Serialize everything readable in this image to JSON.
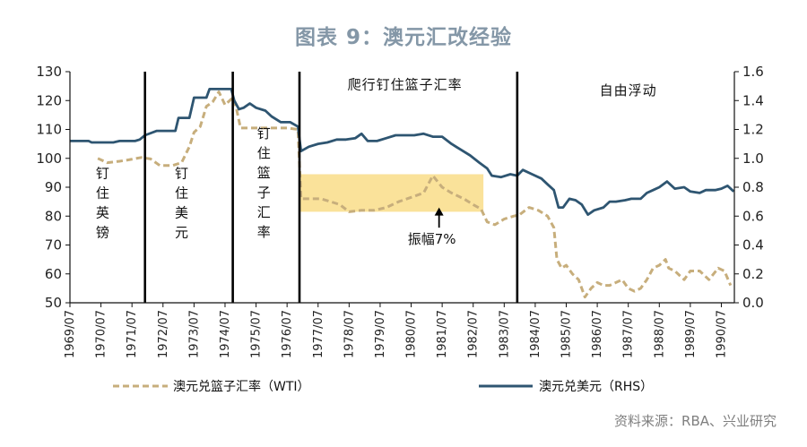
{
  "title": "图表 9：澳元汇改经验",
  "source": "资料来源：RBA、兴业研究",
  "chart_data": {
    "type": "line",
    "ylim_left": [
      50,
      130
    ],
    "yticks_left": [
      "50",
      "60",
      "70",
      "80",
      "90",
      "100",
      "110",
      "120",
      "130"
    ],
    "ylim_right": [
      0.0,
      1.6
    ],
    "yticks_right": [
      "0.0",
      "0.2",
      "0.4",
      "0.6",
      "0.8",
      "1.0",
      "1.2",
      "1.4",
      "1.6"
    ],
    "xlim": [
      1969.5,
      1990.92
    ],
    "xticks": [
      "1969/07",
      "1970/07",
      "1971/07",
      "1972/07",
      "1973/07",
      "1974/07",
      "1975/07",
      "1976/07",
      "1977/07",
      "1978/07",
      "1979/07",
      "1980/07",
      "1981/07",
      "1982/07",
      "1983/07",
      "1984/07",
      "1985/07",
      "1986/07",
      "1987/07",
      "1988/07",
      "1989/07",
      "1990/07"
    ],
    "regime_lines": [
      1971.92,
      1974.75,
      1976.9,
      1983.92
    ],
    "regime_labels": [
      {
        "text": "钉\n住\n英\n镑",
        "vertical": true,
        "x": 1970.55,
        "y": 83
      },
      {
        "text": "钉\n住\n美\n元",
        "vertical": true,
        "x": 1973.1,
        "y": 83
      },
      {
        "text": "钉\n住\n篮\n子\n汇\n率",
        "vertical": true,
        "x": 1975.75,
        "y": 90
      },
      {
        "text": "爬行钉住篮子汇率",
        "vertical": false,
        "x": 1980.3,
        "y": 124
      },
      {
        "text": "自由浮动",
        "vertical": false,
        "x": 1987.5,
        "y": 122
      }
    ],
    "band": {
      "x0": 1976.92,
      "x1": 1982.83,
      "y0": 81.5,
      "y1": 94.5,
      "color": "#f9dd88"
    },
    "annotation": {
      "text": "振幅7%",
      "x": 1981.4,
      "y_label": 70.5,
      "arrow_from": 76,
      "arrow_to": 83
    },
    "series": [
      {
        "name": "澳元兑篮子汇率（WTI）",
        "axis": "left",
        "color": "#c7ae7c",
        "dashed": true,
        "points": [
          [
            1970.4,
            100
          ],
          [
            1970.7,
            98.5
          ],
          [
            1971.1,
            99
          ],
          [
            1971.4,
            99.5
          ],
          [
            1971.8,
            100.3
          ],
          [
            1972.1,
            99.8
          ],
          [
            1972.4,
            97.5
          ],
          [
            1972.8,
            97.5
          ],
          [
            1973.1,
            98.5
          ],
          [
            1973.35,
            104
          ],
          [
            1973.5,
            109
          ],
          [
            1973.7,
            111
          ],
          [
            1973.9,
            118
          ],
          [
            1974.1,
            119.5
          ],
          [
            1974.3,
            123
          ],
          [
            1974.5,
            118.5
          ],
          [
            1974.75,
            121
          ],
          [
            1974.85,
            118
          ],
          [
            1975.0,
            110.5
          ],
          [
            1975.5,
            110.5
          ],
          [
            1976.0,
            110.5
          ],
          [
            1976.5,
            110.5
          ],
          [
            1976.85,
            110
          ],
          [
            1976.95,
            86
          ],
          [
            1977.2,
            86
          ],
          [
            1977.6,
            86
          ],
          [
            1977.9,
            85
          ],
          [
            1978.2,
            84
          ],
          [
            1978.5,
            81.5
          ],
          [
            1978.9,
            82
          ],
          [
            1979.3,
            82
          ],
          [
            1979.7,
            83
          ],
          [
            1980.1,
            85
          ],
          [
            1980.5,
            86.5
          ],
          [
            1980.9,
            88
          ],
          [
            1981.2,
            94
          ],
          [
            1981.5,
            90
          ],
          [
            1981.8,
            88
          ],
          [
            1982.2,
            86
          ],
          [
            1982.5,
            84
          ],
          [
            1982.75,
            82.5
          ],
          [
            1982.95,
            78
          ],
          [
            1983.2,
            77
          ],
          [
            1983.5,
            79
          ],
          [
            1983.8,
            80
          ],
          [
            1984.0,
            80.5
          ],
          [
            1984.3,
            83
          ],
          [
            1984.6,
            82
          ],
          [
            1984.9,
            80
          ],
          [
            1985.1,
            76
          ],
          [
            1985.2,
            65
          ],
          [
            1985.35,
            62
          ],
          [
            1985.5,
            63
          ],
          [
            1985.7,
            60
          ],
          [
            1985.9,
            58
          ],
          [
            1986.1,
            52
          ],
          [
            1986.3,
            55
          ],
          [
            1986.5,
            57
          ],
          [
            1986.7,
            56
          ],
          [
            1986.9,
            56
          ],
          [
            1987.1,
            57
          ],
          [
            1987.3,
            58
          ],
          [
            1987.5,
            55
          ],
          [
            1987.7,
            54
          ],
          [
            1987.9,
            55
          ],
          [
            1988.1,
            58
          ],
          [
            1988.3,
            62
          ],
          [
            1988.5,
            63
          ],
          [
            1988.7,
            65
          ],
          [
            1988.8,
            62
          ],
          [
            1989.0,
            61
          ],
          [
            1989.3,
            58
          ],
          [
            1989.5,
            61
          ],
          [
            1989.8,
            61
          ],
          [
            1990.1,
            58
          ],
          [
            1990.4,
            62
          ],
          [
            1990.6,
            61
          ],
          [
            1990.8,
            56
          ]
        ]
      },
      {
        "name": "澳元兑美元（RHS）",
        "axis": "right",
        "color": "#2e5571",
        "dashed": false,
        "points": [
          [
            1969.5,
            1.12
          ],
          [
            1969.9,
            1.12
          ],
          [
            1970.1,
            1.12
          ],
          [
            1970.2,
            1.11
          ],
          [
            1970.5,
            1.11
          ],
          [
            1970.9,
            1.11
          ],
          [
            1971.1,
            1.12
          ],
          [
            1971.4,
            1.12
          ],
          [
            1971.6,
            1.12
          ],
          [
            1971.75,
            1.13
          ],
          [
            1971.92,
            1.16
          ],
          [
            1972.3,
            1.19
          ],
          [
            1972.9,
            1.19
          ],
          [
            1973.0,
            1.28
          ],
          [
            1973.35,
            1.28
          ],
          [
            1973.5,
            1.42
          ],
          [
            1973.9,
            1.42
          ],
          [
            1974.0,
            1.48
          ],
          [
            1974.7,
            1.48
          ],
          [
            1974.8,
            1.4
          ],
          [
            1974.95,
            1.34
          ],
          [
            1975.1,
            1.35
          ],
          [
            1975.3,
            1.38
          ],
          [
            1975.5,
            1.35
          ],
          [
            1975.8,
            1.33
          ],
          [
            1976.0,
            1.29
          ],
          [
            1976.3,
            1.25
          ],
          [
            1976.6,
            1.25
          ],
          [
            1976.85,
            1.22
          ],
          [
            1976.95,
            1.05
          ],
          [
            1977.2,
            1.08
          ],
          [
            1977.5,
            1.1
          ],
          [
            1977.8,
            1.11
          ],
          [
            1978.1,
            1.13
          ],
          [
            1978.4,
            1.13
          ],
          [
            1978.7,
            1.14
          ],
          [
            1978.9,
            1.17
          ],
          [
            1979.1,
            1.12
          ],
          [
            1979.4,
            1.12
          ],
          [
            1979.7,
            1.14
          ],
          [
            1980.0,
            1.16
          ],
          [
            1980.3,
            1.16
          ],
          [
            1980.6,
            1.16
          ],
          [
            1980.9,
            1.17
          ],
          [
            1981.2,
            1.15
          ],
          [
            1981.5,
            1.15
          ],
          [
            1981.8,
            1.1
          ],
          [
            1982.1,
            1.06
          ],
          [
            1982.4,
            1.02
          ],
          [
            1982.7,
            0.97
          ],
          [
            1982.95,
            0.93
          ],
          [
            1983.1,
            0.88
          ],
          [
            1983.4,
            0.87
          ],
          [
            1983.7,
            0.89
          ],
          [
            1983.92,
            0.88
          ],
          [
            1984.1,
            0.92
          ],
          [
            1984.4,
            0.89
          ],
          [
            1984.7,
            0.86
          ],
          [
            1984.9,
            0.82
          ],
          [
            1985.1,
            0.78
          ],
          [
            1985.25,
            0.66
          ],
          [
            1985.4,
            0.66
          ],
          [
            1985.6,
            0.72
          ],
          [
            1985.8,
            0.71
          ],
          [
            1986.0,
            0.68
          ],
          [
            1986.2,
            0.61
          ],
          [
            1986.4,
            0.64
          ],
          [
            1986.7,
            0.66
          ],
          [
            1986.9,
            0.7
          ],
          [
            1987.1,
            0.7
          ],
          [
            1987.4,
            0.71
          ],
          [
            1987.6,
            0.72
          ],
          [
            1987.9,
            0.72
          ],
          [
            1988.1,
            0.76
          ],
          [
            1988.3,
            0.78
          ],
          [
            1988.5,
            0.8
          ],
          [
            1988.75,
            0.84
          ],
          [
            1989.0,
            0.79
          ],
          [
            1989.3,
            0.8
          ],
          [
            1989.5,
            0.77
          ],
          [
            1989.8,
            0.76
          ],
          [
            1990.0,
            0.78
          ],
          [
            1990.3,
            0.78
          ],
          [
            1990.5,
            0.79
          ],
          [
            1990.7,
            0.81
          ],
          [
            1990.9,
            0.77
          ]
        ]
      }
    ]
  }
}
